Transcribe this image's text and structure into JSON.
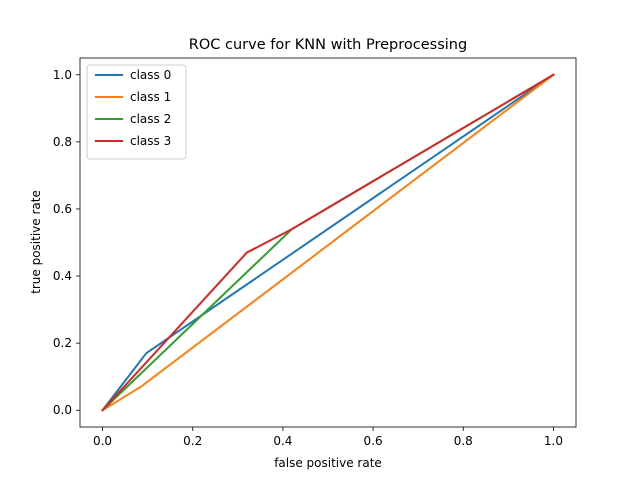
{
  "chart_data": {
    "type": "line",
    "title": "ROC curve for KNN with Preprocessing",
    "xlabel": "false positive rate",
    "ylabel": "true positive rate",
    "xlim": [
      -0.05,
      1.05
    ],
    "ylim": [
      -0.05,
      1.05
    ],
    "x_ticks": [
      "0.0",
      "0.2",
      "0.4",
      "0.6",
      "0.8",
      "1.0"
    ],
    "y_ticks": [
      "0.0",
      "0.2",
      "0.4",
      "0.6",
      "0.8",
      "1.0"
    ],
    "legend_position": "top-left",
    "grid": false,
    "series": [
      {
        "name": "class 0",
        "color": "#1f77b4",
        "x": [
          0.0,
          0.097,
          1.0
        ],
        "y": [
          0.0,
          0.17,
          1.0
        ]
      },
      {
        "name": "class 1",
        "color": "#ff7f0e",
        "x": [
          0.0,
          0.085,
          1.0
        ],
        "y": [
          0.0,
          0.07,
          1.0
        ]
      },
      {
        "name": "class 2",
        "color": "#2ca02c",
        "x": [
          0.0,
          0.42,
          1.0
        ],
        "y": [
          0.0,
          0.54,
          1.0
        ]
      },
      {
        "name": "class 3",
        "color": "#d62728",
        "x": [
          0.0,
          0.32,
          0.42,
          1.0
        ],
        "y": [
          0.0,
          0.47,
          0.54,
          1.0
        ]
      }
    ]
  }
}
